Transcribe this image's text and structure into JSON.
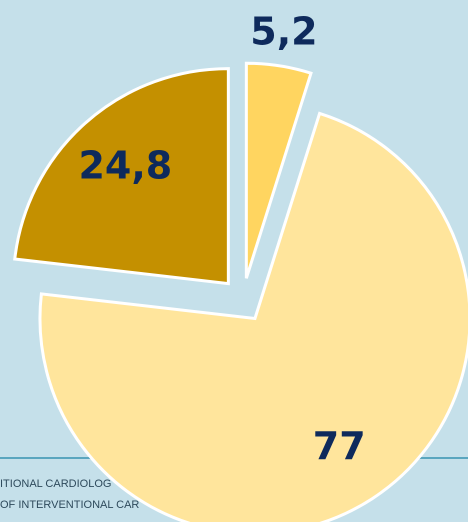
{
  "footer": [
    "ITIONAL CARDIOLOG",
    "OF INTERVENTIONAL CAR"
  ],
  "chart_data": {
    "type": "pie",
    "categories": [
      null,
      null,
      null
    ],
    "values": [
      5.2,
      77,
      24.8
    ],
    "value_labels": [
      "5,2",
      "77",
      "24,8"
    ],
    "colors": [
      "#ffd560",
      "#ffe59c",
      "#c49000"
    ]
  }
}
